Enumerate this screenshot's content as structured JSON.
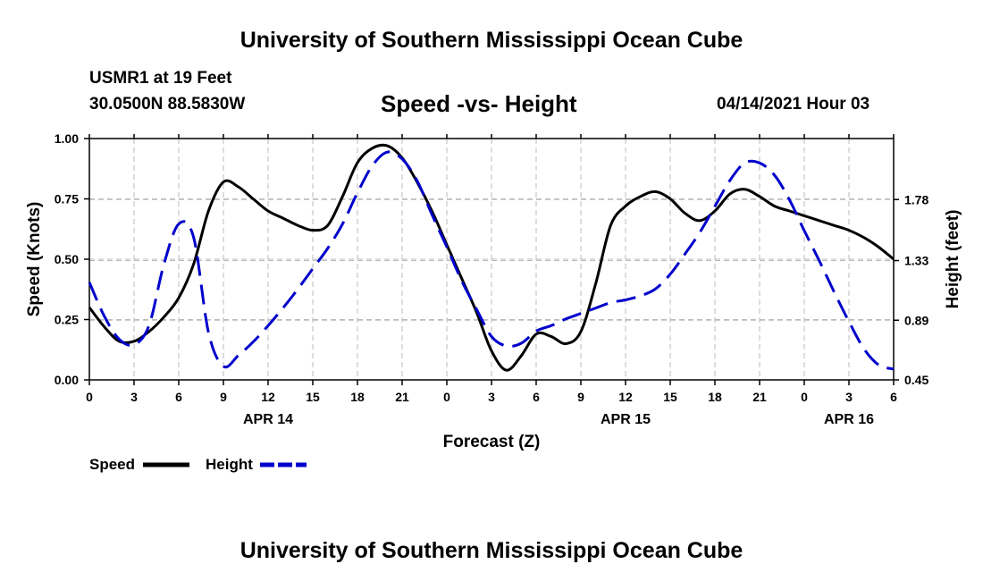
{
  "page": {
    "top_title": "University of Southern Mississippi Ocean Cube",
    "bottom_title": "University of Southern Mississippi Ocean Cube",
    "station": "USMR1 at 19 Feet",
    "coords": "30.0500N  88.5830W",
    "chart_title": "Speed -vs- Height",
    "timestamp": "04/14/2021 Hour 03"
  },
  "colors": {
    "speed": "#000000",
    "height": "#0000cc",
    "grid": "#bbbbbb"
  },
  "chart_data": {
    "type": "line",
    "title": "Speed -vs- Height",
    "xlabel": "Forecast (Z)",
    "ylabel": "Speed (Knots)",
    "y2label": "Height (feet)",
    "x_range": [
      0,
      54
    ],
    "ylim": [
      0,
      1.0
    ],
    "y2lim": [
      0.45,
      2.23
    ],
    "x_ticks": [
      0,
      3,
      6,
      9,
      12,
      15,
      18,
      21,
      24,
      27,
      30,
      33,
      36,
      39,
      42,
      45,
      48,
      51,
      54
    ],
    "x_tick_labels": [
      "0",
      "3",
      "6",
      "9",
      "12",
      "15",
      "18",
      "21",
      "0",
      "3",
      "6",
      "9",
      "12",
      "15",
      "18",
      "21",
      "0",
      "3",
      "6"
    ],
    "date_labels": [
      {
        "x": 12,
        "label": "APR 14"
      },
      {
        "x": 36,
        "label": "APR 15"
      },
      {
        "x": 51,
        "label": "APR 16"
      }
    ],
    "y_ticks": [
      0,
      0.25,
      0.5,
      0.75,
      1.0
    ],
    "y_tick_labels": [
      "0.00",
      "0.25",
      "0.50",
      "0.75",
      "1.00"
    ],
    "y2_ticks": [
      0.45,
      0.89,
      1.33,
      1.78
    ],
    "y2_tick_labels": [
      "0.45",
      "0.89",
      "1.33",
      "1.78"
    ],
    "grid": true,
    "legend": {
      "placement": "bottom-left",
      "entries": [
        "Speed",
        "Height"
      ]
    },
    "series": [
      {
        "name": "Speed",
        "axis": "left",
        "style": "solid",
        "x": [
          0,
          1,
          2,
          3,
          4,
          5,
          6,
          7,
          8,
          9,
          10,
          11,
          12,
          13,
          14,
          15,
          16,
          17,
          18,
          19,
          20,
          21,
          22,
          23,
          24,
          25,
          26,
          27,
          28,
          29,
          30,
          31,
          32,
          33,
          34,
          35,
          36,
          37,
          38,
          39,
          40,
          41,
          42,
          43,
          44,
          45,
          46,
          47,
          48,
          49,
          50,
          51,
          52,
          53,
          54
        ],
        "values": [
          0.3,
          0.22,
          0.16,
          0.16,
          0.2,
          0.26,
          0.34,
          0.48,
          0.7,
          0.82,
          0.8,
          0.75,
          0.7,
          0.67,
          0.64,
          0.62,
          0.64,
          0.76,
          0.9,
          0.96,
          0.97,
          0.92,
          0.82,
          0.7,
          0.56,
          0.42,
          0.28,
          0.12,
          0.04,
          0.1,
          0.19,
          0.18,
          0.15,
          0.2,
          0.4,
          0.64,
          0.72,
          0.76,
          0.78,
          0.75,
          0.69,
          0.66,
          0.7,
          0.77,
          0.79,
          0.76,
          0.72,
          0.7,
          0.68,
          0.66,
          0.64,
          0.62,
          0.59,
          0.55,
          0.5
        ]
      },
      {
        "name": "Height",
        "axis": "right",
        "style": "dashed",
        "x": [
          0,
          1,
          2,
          3,
          4,
          5,
          6,
          7,
          8,
          9,
          10,
          11,
          12,
          13,
          14,
          15,
          16,
          17,
          18,
          19,
          20,
          21,
          22,
          23,
          24,
          25,
          26,
          27,
          28,
          29,
          30,
          31,
          32,
          33,
          34,
          35,
          36,
          37,
          38,
          39,
          40,
          41,
          42,
          43,
          44,
          45,
          46,
          47,
          48,
          49,
          50,
          51,
          52,
          53,
          54
        ],
        "values": [
          1.17,
          0.92,
          0.75,
          0.71,
          0.85,
          1.3,
          1.6,
          1.5,
          0.8,
          0.55,
          0.63,
          0.73,
          0.85,
          0.98,
          1.12,
          1.27,
          1.42,
          1.6,
          1.83,
          2.03,
          2.13,
          2.08,
          1.92,
          1.67,
          1.43,
          1.18,
          0.97,
          0.77,
          0.7,
          0.72,
          0.81,
          0.85,
          0.9,
          0.94,
          0.98,
          1.02,
          1.04,
          1.07,
          1.12,
          1.23,
          1.38,
          1.54,
          1.73,
          1.92,
          2.05,
          2.05,
          1.96,
          1.78,
          1.55,
          1.33,
          1.1,
          0.88,
          0.68,
          0.56,
          0.53
        ]
      }
    ]
  }
}
